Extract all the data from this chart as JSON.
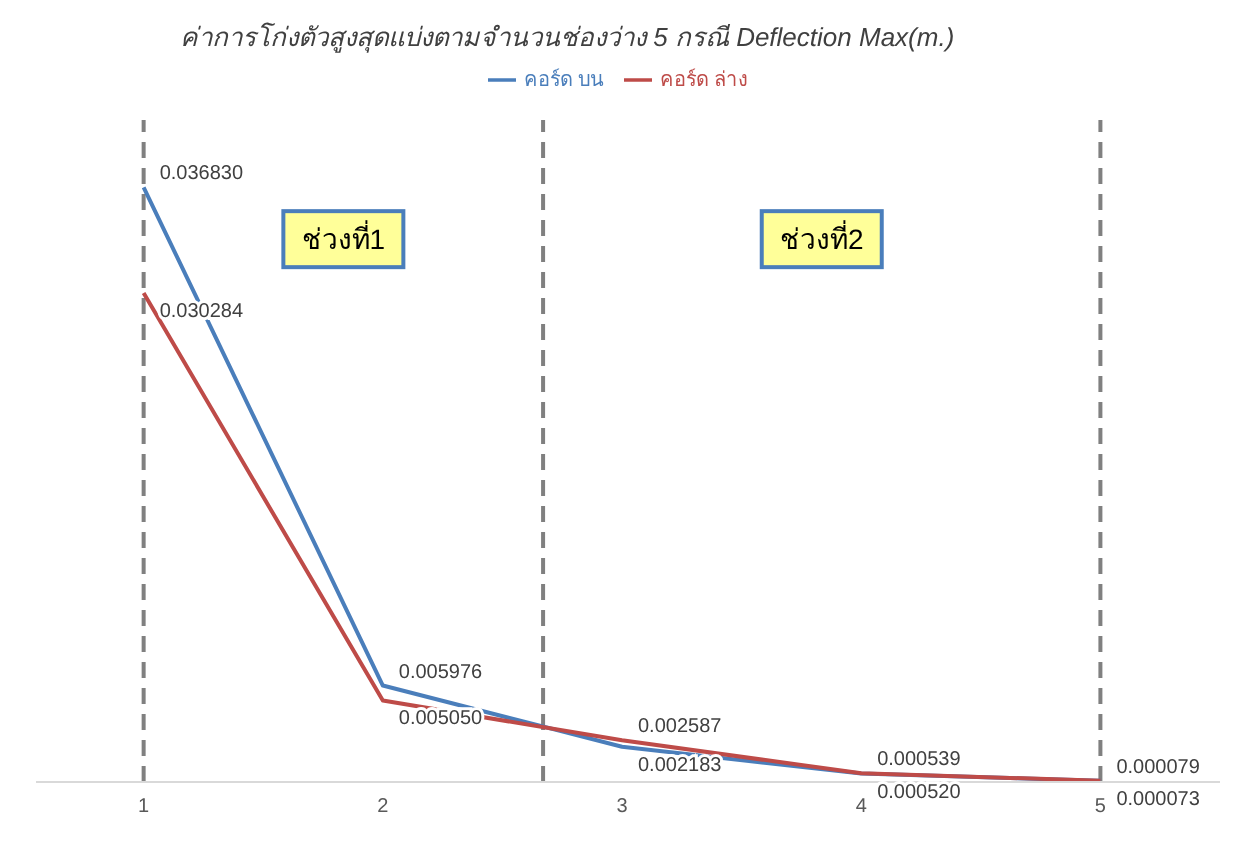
{
  "chart_data": {
    "type": "line",
    "title": "ค่าการโก่งตัวสูงสุดแบ่งตามจำนวนช่องว่าง 5 กรณี  Deflection Max(m.)",
    "x": [
      1,
      2,
      3,
      4,
      5
    ],
    "series": [
      {
        "name": "คอร์ด บน",
        "color": "#4a7ebb",
        "values": [
          0.03683,
          0.005976,
          0.002183,
          0.00052,
          7.3e-05
        ],
        "value_labels": [
          "0.036830",
          "0.005976",
          "0.002183",
          "0.000520",
          "0.000073"
        ]
      },
      {
        "name": "คอร์ด ล่าง",
        "color": "#be4b48",
        "values": [
          0.030284,
          0.00505,
          0.002587,
          0.000539,
          7.9e-05
        ],
        "value_labels": [
          "0.030284",
          "0.005050",
          "0.002587",
          "0.000539",
          "0.000079"
        ]
      }
    ],
    "xlim": [
      0.55,
      5.5
    ],
    "xticks": [
      1,
      2,
      3,
      4,
      5
    ],
    "ylim": [
      0,
      0.041
    ],
    "tick_labels": "x",
    "ref_lines": [
      {
        "axis": "x",
        "value": 1,
        "color": "#808080",
        "line_style": "dashed"
      },
      {
        "axis": "x",
        "value": 2.67,
        "color": "#808080",
        "line_style": "dashed"
      },
      {
        "axis": "x",
        "value": 5,
        "color": "#808080",
        "line_style": "dashed"
      }
    ],
    "annotations": [
      "ช่วงที่1",
      "ช่วงที่2"
    ],
    "grid": false,
    "legend": "top",
    "marker": "none",
    "line_style": "solid"
  }
}
